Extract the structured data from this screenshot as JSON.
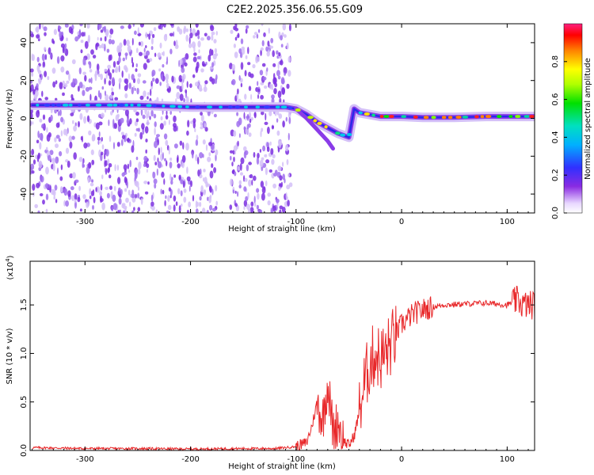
{
  "title": "C2E2.2025.356.06.55.G09",
  "chart_data": [
    {
      "type": "heatmap",
      "xlabel": "Height of straight line (km)",
      "ylabel": "Frequency (Hz)",
      "xlim": [
        -352,
        126
      ],
      "ylim": [
        -50,
        50
      ],
      "xticks": [
        -300,
        -200,
        -100,
        0,
        100
      ],
      "yticks": [
        -40,
        -20,
        0,
        20,
        40
      ],
      "colorbar": {
        "label": "Normalized spectral amplitude",
        "range": [
          0,
          1
        ],
        "ticks": [
          "0.0",
          "0.2",
          "0.4",
          "0.6",
          "0.8"
        ]
      },
      "signal_trace": {
        "x": [
          -350,
          -300,
          -250,
          -200,
          -150,
          -110,
          -100,
          -90,
          -80,
          -70,
          -60,
          -50,
          -45,
          -40,
          -30,
          -20,
          -10,
          0,
          20,
          50,
          80,
          100,
          126
        ],
        "y": [
          7,
          7,
          7,
          6,
          6,
          6,
          5,
          2,
          -2,
          -5,
          -8,
          -10,
          5,
          3,
          2,
          1,
          1,
          1,
          0.5,
          0.5,
          1,
          1,
          1
        ]
      },
      "secondary_trace": {
        "x": [
          -100,
          -90,
          -80,
          -70,
          -65
        ],
        "y": [
          5,
          0,
          -6,
          -12,
          -16
        ]
      },
      "noise_extent_x": [
        -352,
        -105
      ],
      "grid": false
    },
    {
      "type": "line",
      "xlabel": "Height of straight line (km)",
      "ylabel": "SNR (10 * v/v)",
      "scale_label": "(x10",
      "scale_exp": "4",
      "xlim": [
        -352,
        126
      ],
      "ylim": [
        0,
        1.95
      ],
      "xticks": [
        -300,
        -200,
        -100,
        0,
        100
      ],
      "yticks": [
        "0.0",
        "0.5",
        "1.0",
        "1.5"
      ],
      "series": [
        {
          "color": "#e8282a",
          "x": [
            -350,
            -300,
            -250,
            -200,
            -150,
            -120,
            -100,
            -90,
            -85,
            -80,
            -75,
            -70,
            -65,
            -60,
            -55,
            -50,
            -45,
            -40,
            -35,
            -30,
            -25,
            -20,
            -15,
            -10,
            -5,
            0,
            10,
            20,
            30,
            40,
            60,
            80,
            100,
            110,
            115,
            120,
            126
          ],
          "values": [
            0.03,
            0.02,
            0.02,
            0.015,
            0.02,
            0.02,
            0.04,
            0.08,
            0.25,
            0.5,
            0.3,
            0.7,
            0.2,
            0.3,
            0.1,
            0.05,
            0.15,
            0.4,
            0.7,
            0.9,
            1.0,
            0.95,
            1.0,
            1.1,
            1.2,
            1.3,
            1.4,
            1.45,
            1.48,
            1.5,
            1.51,
            1.52,
            1.5,
            1.55,
            1.5,
            1.5,
            1.5
          ]
        }
      ],
      "grid": false
    }
  ]
}
